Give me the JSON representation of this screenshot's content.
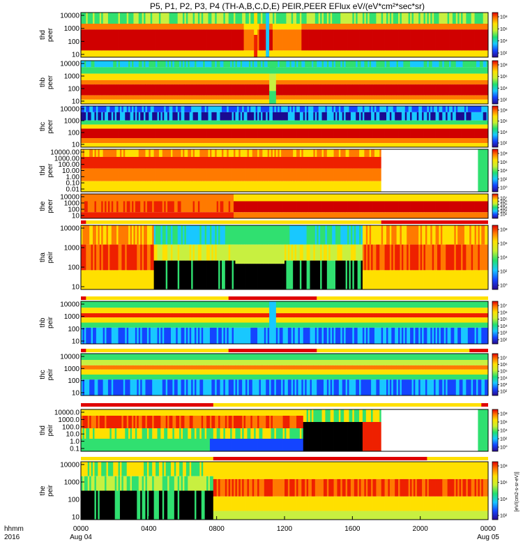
{
  "chart_data": {
    "type": "heatmap",
    "title": "P5, P1, P2, P3, P4 (TH-A,B,C,D,E) PEIR,PEER EFlux eV/(eV*cm²*sec*sr)",
    "x_axis": {
      "row1_label": "hhmm",
      "row2_label": "2016",
      "ticks": [
        "0000",
        "0400",
        "0800",
        "1200",
        "1600",
        "2000",
        "0000"
      ],
      "tick_hours": [
        0,
        4,
        8,
        12,
        16,
        20,
        24
      ],
      "date_labels": [
        "Aug 04",
        "Aug 05"
      ],
      "range_hours": [
        0,
        24
      ]
    },
    "colorbar_label": "[eV/(cm2-s-sr-eV)]",
    "scale": "log",
    "panels": [
      {
        "ylabel": [
          "thd",
          "peer"
        ],
        "yticks": [
          "10000",
          "1000",
          "100",
          "10"
        ],
        "cb_ticks": [
          "10⁸",
          "10⁶",
          "10⁴",
          "10²"
        ],
        "pattern": "thd_peer"
      },
      {
        "ylabel": [
          "thb",
          "peer"
        ],
        "yticks": [
          "10000",
          "1000",
          "100",
          "10"
        ],
        "cb_ticks": [
          "10⁸",
          "10⁶",
          "10⁴",
          "10²"
        ],
        "pattern": "thb_peer"
      },
      {
        "ylabel": [
          "thc",
          "peer"
        ],
        "yticks": [
          "10000",
          "1000",
          "100",
          "10"
        ],
        "cb_ticks": [
          "10⁸",
          "10⁶",
          "10⁴",
          "10²"
        ],
        "pattern": "thc_peer"
      },
      {
        "ylabel": [
          "thd",
          "peer"
        ],
        "yticks": [
          "10000.00",
          "1000.00",
          "100.00",
          "10.00",
          "1.00",
          "0.10",
          "0.01"
        ],
        "cb_ticks": [
          "10⁸",
          "10⁶",
          "10⁴",
          "10²",
          "10⁰"
        ],
        "pattern": "thd_peer2"
      },
      {
        "ylabel": [
          "the",
          "peer"
        ],
        "yticks": [
          "10000",
          "1000",
          "100",
          "10"
        ],
        "cb_ticks": [
          "10⁷",
          "10⁶",
          "10⁵",
          "10⁴",
          "10³",
          "10²"
        ],
        "pattern": "the_peer"
      },
      {
        "ylabel": [
          "tha",
          "peir"
        ],
        "yticks": [
          "10000",
          "1000",
          "100",
          "10"
        ],
        "cb_ticks": [
          "10⁸",
          "10⁶",
          "10⁴",
          "10²",
          "10⁰"
        ],
        "pattern": "tha_peir"
      },
      {
        "ylabel": [
          "thb",
          "peir"
        ],
        "yticks": [
          "10000",
          "1000",
          "100",
          "10"
        ],
        "cb_ticks": [
          "10⁷",
          "10⁶",
          "10⁵",
          "10⁴",
          "10³",
          "10²"
        ],
        "pattern": "thb_peir"
      },
      {
        "ylabel": [
          "thc",
          "peir"
        ],
        "yticks": [
          "10000",
          "1000",
          "100",
          "10"
        ],
        "cb_ticks": [
          "10⁷",
          "10⁶",
          "10⁵",
          "10⁴",
          "10³",
          "10²"
        ],
        "pattern": "thc_peir"
      },
      {
        "ylabel": [
          "thd",
          "peir"
        ],
        "yticks": [
          "10000.0",
          "1000.0",
          "100.0",
          "10.0",
          "1.0",
          "0.1"
        ],
        "cb_ticks": [
          "10⁸",
          "10⁶",
          "10⁴",
          "10²",
          "10⁰"
        ],
        "pattern": "thd_peir"
      },
      {
        "ylabel": [
          "the",
          "peir"
        ],
        "yticks": [
          "10000",
          "1000",
          "100",
          "10"
        ],
        "cb_ticks": [
          "10⁸",
          "10⁶",
          "10⁴",
          "10²"
        ],
        "pattern": "the_peir"
      }
    ],
    "mode_bars": [
      {
        "above_panel": 5,
        "red_segments_hours": [
          [
            0,
            0.3
          ],
          [
            17.7,
            24
          ]
        ]
      },
      {
        "above_panel": 6,
        "red_segments_hours": [
          [
            0,
            0.3
          ],
          [
            8.7,
            13.9
          ]
        ]
      },
      {
        "above_panel": 7,
        "red_segments_hours": [
          [
            0,
            0.3
          ],
          [
            8.7,
            13.9
          ],
          [
            22.9,
            24
          ]
        ]
      },
      {
        "above_panel": 8,
        "red_segments_hours": [
          [
            0,
            7.8
          ],
          [
            23.6,
            24
          ]
        ]
      },
      {
        "above_panel": 9,
        "red_segments_hours": [
          [
            7.8,
            20.4
          ]
        ]
      }
    ]
  }
}
